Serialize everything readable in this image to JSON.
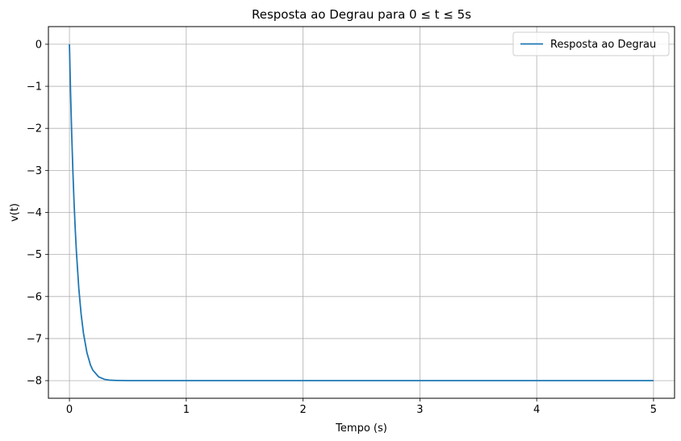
{
  "chart_data": {
    "type": "line",
    "title": "Resposta ao Degrau para 0 ≤ t ≤ 5s",
    "xlabel": "Tempo (s)",
    "ylabel": "v(t)",
    "xlim": [
      -0.18,
      5.18
    ],
    "ylim": [
      -8.42,
      0.42
    ],
    "x_ticks": [
      0,
      1,
      2,
      3,
      4,
      5
    ],
    "x_tick_labels": [
      "0",
      "1",
      "2",
      "3",
      "4",
      "5"
    ],
    "y_ticks": [
      0,
      -1,
      -2,
      -3,
      -4,
      -5,
      -6,
      -7,
      -8
    ],
    "y_tick_labels": [
      "0",
      "−1",
      "−2",
      "−3",
      "−4",
      "−5",
      "−6",
      "−7",
      "−8"
    ],
    "grid": true,
    "legend": {
      "position": "top-right",
      "entries": [
        "Resposta ao Degrau"
      ]
    },
    "series": [
      {
        "name": "Resposta ao Degrau",
        "color": "#1f77b4",
        "x": [
          0,
          0.01,
          0.02,
          0.03,
          0.04,
          0.05,
          0.06,
          0.08,
          0.1,
          0.12,
          0.15,
          0.18,
          0.2,
          0.25,
          0.3,
          0.35,
          0.4,
          0.5,
          0.6,
          0.8,
          1.0,
          1.5,
          2.0,
          2.5,
          3.0,
          3.5,
          4.0,
          4.5,
          5.0
        ],
        "y": [
          0,
          -1.19,
          -2.2,
          -3.06,
          -3.79,
          -4.42,
          -4.95,
          -5.8,
          -6.42,
          -6.87,
          -7.34,
          -7.63,
          -7.75,
          -7.91,
          -7.97,
          -7.99,
          -7.995,
          -8.0,
          -8.0,
          -8.0,
          -8.0,
          -8.0,
          -8.0,
          -8.0,
          -8.0,
          -8.0,
          -8.0,
          -8.0,
          -8.0
        ]
      }
    ]
  }
}
